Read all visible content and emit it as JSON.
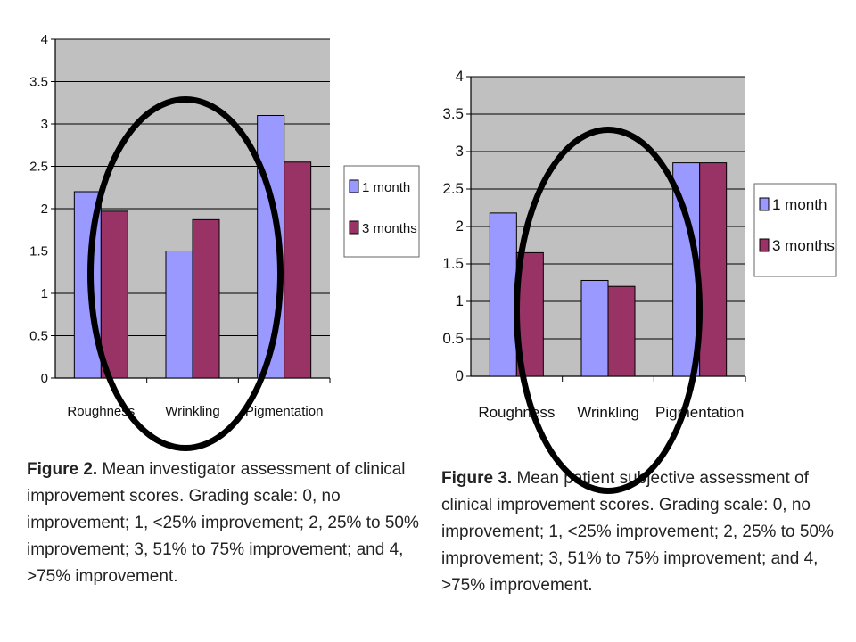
{
  "chart_data": [
    {
      "type": "bar",
      "categories": [
        "Roughness",
        "Wrinkling",
        "Pigmentation"
      ],
      "series": [
        {
          "name": "1 month",
          "values": [
            2.2,
            1.5,
            3.1
          ],
          "color": "#9999ff"
        },
        {
          "name": "3 months",
          "values": [
            1.97,
            1.87,
            2.55
          ],
          "color": "#993366"
        }
      ],
      "ylim": [
        0,
        4
      ],
      "yticks": [
        "0",
        "0.5",
        "1",
        "1.5",
        "2",
        "2.5",
        "3",
        "3.5",
        "4"
      ],
      "grid": true,
      "legend": "right",
      "plot_bg": "#c0c0c0"
    },
    {
      "type": "bar",
      "categories": [
        "Roughness",
        "Wrinkling",
        "Pigmentation"
      ],
      "series": [
        {
          "name": "1 month",
          "values": [
            2.18,
            1.28,
            2.85
          ],
          "color": "#9999ff"
        },
        {
          "name": "3 months",
          "values": [
            1.65,
            1.2,
            2.85
          ],
          "color": "#993366"
        }
      ],
      "ylim": [
        0,
        4
      ],
      "yticks": [
        "0",
        "0.5",
        "1",
        "1.5",
        "2",
        "2.5",
        "3",
        "3.5",
        "4"
      ],
      "grid": true,
      "legend": "right",
      "plot_bg": "#c0c0c0"
    }
  ],
  "captions": [
    {
      "label": "Figure 2.",
      "text": " Mean investigator assessment of clinical improvement scores. Grading scale: 0, no improvement; 1, <25% improvement; 2, 25% to 50% improvement; 3, 51% to 75% improvement; and 4, >75% improvement."
    },
    {
      "label": "Figure 3.",
      "text": " Mean patient subjective assessment of clinical improvement scores. Grading scale: 0, no improvement; 1, <25% improvement; 2, 25% to 50% improvement; 3, 51% to 75% improvement; and 4, >75% improvement."
    }
  ]
}
